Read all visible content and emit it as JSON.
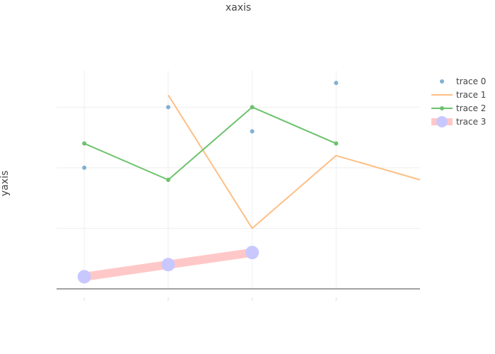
{
  "chart_data": {
    "type": "line",
    "xlabel": "xaxis",
    "ylabel": "yaxis",
    "xlim": [
      -0.33,
      4
    ],
    "ylim": [
      0,
      9
    ],
    "grid": true,
    "legend_position": "top-right",
    "series": [
      {
        "name": "trace 0",
        "mode": "markers",
        "color": "#7fb1d3",
        "x": [
          0,
          1,
          2,
          3
        ],
        "y": [
          5,
          7.5,
          6.5,
          8.5
        ]
      },
      {
        "name": "trace 1",
        "mode": "lines",
        "color": "#fdbf85",
        "x": [
          1,
          2,
          3,
          4
        ],
        "y": [
          8,
          2.5,
          5.5,
          4.5
        ]
      },
      {
        "name": "trace 2",
        "mode": "lines+markers",
        "color": "#6cc26c",
        "x": [
          0,
          1,
          2,
          3
        ],
        "y": [
          6,
          4.5,
          7.5,
          6
        ]
      },
      {
        "name": "trace 3",
        "mode": "lines+markers",
        "line_color": "#ffc8c8",
        "marker_color": "#c8c8ff",
        "x": [
          0,
          1,
          2
        ],
        "y": [
          0.5,
          1,
          1.5
        ]
      }
    ]
  }
}
